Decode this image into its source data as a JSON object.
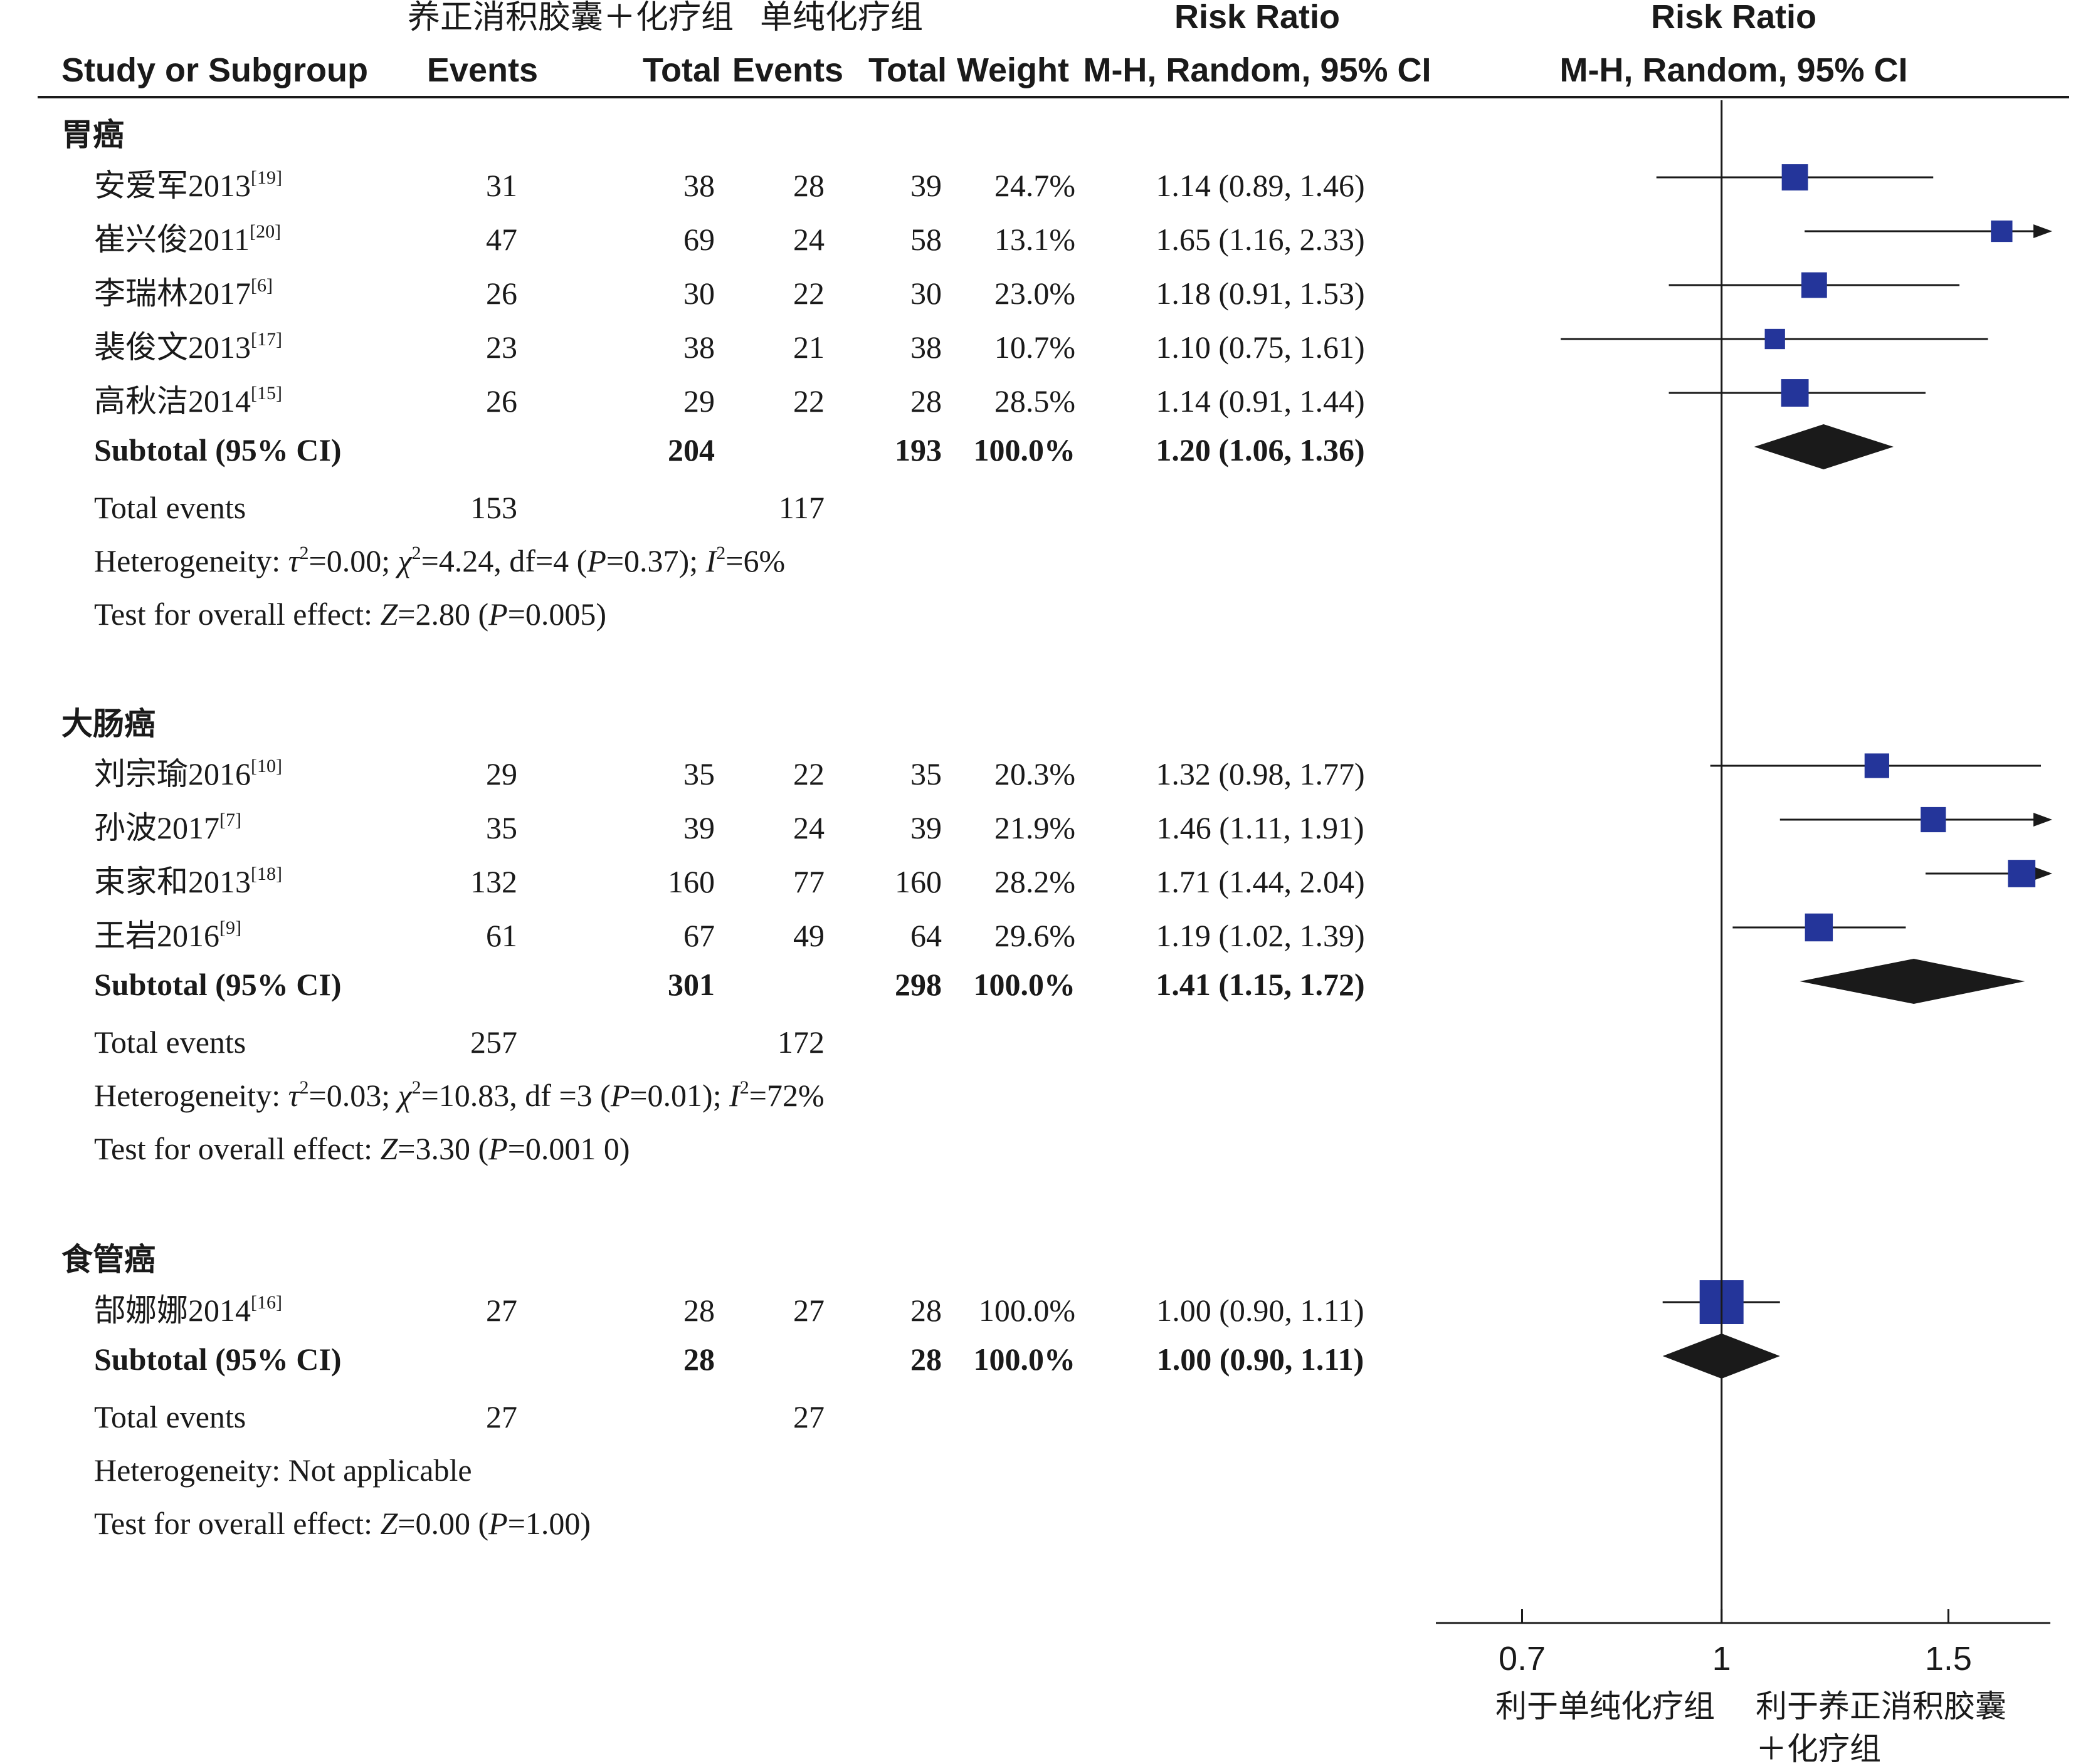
{
  "headers": {
    "group1_name": "养正消积胶囊＋化疗组",
    "group2_name": "单纯化疗组",
    "study_col": "Study or Subgroup",
    "events": "Events",
    "total": "Total",
    "weight": "Weight",
    "rr_title": "Risk Ratio",
    "rr_method": "M-H, Random, 95% CI"
  },
  "chart_data": {
    "type": "forest",
    "axis": {
      "scale": "log",
      "xlim": [
        0.6,
        1.8
      ],
      "ticks": [
        0.7,
        1,
        1.5
      ],
      "tick_labels": [
        "0.7",
        "1",
        "1.5"
      ],
      "left_label": "利于单纯化疗组",
      "right_label_line1": "利于养正消积胶囊",
      "right_label_line2": "＋化疗组"
    },
    "subgroups": [
      {
        "name": "胃癌",
        "studies": [
          {
            "label": "安爱军2013",
            "ref": "[19]",
            "e1": "31",
            "t1": "38",
            "e2": "28",
            "t2": "39",
            "weight": "24.7%",
            "rr_text": "1.14 (0.89, 1.46)",
            "rr": 1.14,
            "lo": 0.89,
            "hi": 1.46
          },
          {
            "label": "崔兴俊2011",
            "ref": "[20]",
            "e1": "47",
            "t1": "69",
            "e2": "24",
            "t2": "58",
            "weight": "13.1%",
            "rr_text": "1.65 (1.16, 2.33)",
            "rr": 1.65,
            "lo": 1.16,
            "hi": 2.33
          },
          {
            "label": "李瑞林2017",
            "ref": "[6]",
            "e1": "26",
            "t1": "30",
            "e2": "22",
            "t2": "30",
            "weight": "23.0%",
            "rr_text": "1.18 (0.91, 1.53)",
            "rr": 1.18,
            "lo": 0.91,
            "hi": 1.53
          },
          {
            "label": "裴俊文2013",
            "ref": "[17]",
            "e1": "23",
            "t1": "38",
            "e2": "21",
            "t2": "38",
            "weight": "10.7%",
            "rr_text": "1.10 (0.75, 1.61)",
            "rr": 1.1,
            "lo": 0.75,
            "hi": 1.61
          },
          {
            "label": "高秋洁2014",
            "ref": "[15]",
            "e1": "26",
            "t1": "29",
            "e2": "22",
            "t2": "28",
            "weight": "28.5%",
            "rr_text": "1.14 (0.91, 1.44)",
            "rr": 1.14,
            "lo": 0.91,
            "hi": 1.44
          }
        ],
        "subtotal": {
          "label": "Subtotal (95% CI)",
          "t1": "204",
          "t2": "193",
          "weight": "100.0%",
          "rr_text": "1.20 (1.06, 1.36)",
          "rr": 1.2,
          "lo": 1.06,
          "hi": 1.36
        },
        "total_events": {
          "label": "Total events",
          "e1": "153",
          "e2": "117"
        },
        "heterogeneity": {
          "prefix": "Heterogeneity: ",
          "tau": "τ",
          "tau_val": "=0.00; ",
          "chi": "χ",
          "chi_val": "=4.24, df=4 (",
          "p": "P",
          "p_val": "=0.37); ",
          "i": "I",
          "i_val": "=6%"
        },
        "overall": {
          "prefix": "Test for overall effect: ",
          "z": "Z",
          "z_val": "=2.80 (",
          "p": "P",
          "p_val": "=0.005)"
        }
      },
      {
        "name": "大肠癌",
        "studies": [
          {
            "label": "刘宗瑜2016",
            "ref": "[10]",
            "e1": "29",
            "t1": "35",
            "e2": "22",
            "t2": "35",
            "weight": "20.3%",
            "rr_text": "1.32 (0.98, 1.77)",
            "rr": 1.32,
            "lo": 0.98,
            "hi": 1.77
          },
          {
            "label": "孙波2017",
            "ref": "[7]",
            "e1": "35",
            "t1": "39",
            "e2": "24",
            "t2": "39",
            "weight": "21.9%",
            "rr_text": "1.46 (1.11, 1.91)",
            "rr": 1.46,
            "lo": 1.11,
            "hi": 1.91
          },
          {
            "label": "束家和2013",
            "ref": "[18]",
            "e1": "132",
            "t1": "160",
            "e2": "77",
            "t2": "160",
            "weight": "28.2%",
            "rr_text": "1.71 (1.44, 2.04)",
            "rr": 1.71,
            "lo": 1.44,
            "hi": 2.04
          },
          {
            "label": "王岩2016",
            "ref": "[9]",
            "e1": "61",
            "t1": "67",
            "e2": "49",
            "t2": "64",
            "weight": "29.6%",
            "rr_text": "1.19 (1.02, 1.39)",
            "rr": 1.19,
            "lo": 1.02,
            "hi": 1.39
          }
        ],
        "subtotal": {
          "label": "Subtotal (95% CI)",
          "t1": "301",
          "t2": "298",
          "weight": "100.0%",
          "rr_text": "1.41 (1.15, 1.72)",
          "rr": 1.41,
          "lo": 1.15,
          "hi": 1.72
        },
        "total_events": {
          "label": "Total events",
          "e1": "257",
          "e2": "172"
        },
        "heterogeneity": {
          "prefix": "Heterogeneity: ",
          "tau": "τ",
          "tau_val": "=0.03; ",
          "chi": "χ",
          "chi_val": "=10.83, df =3 (",
          "p": "P",
          "p_val": "=0.01); ",
          "i": "I",
          "i_val": "=72%"
        },
        "overall": {
          "prefix": "Test for overall effect: ",
          "z": "Z",
          "z_val": "=3.30 (",
          "p": "P",
          "p_val": "=0.001 0)"
        }
      },
      {
        "name": "食管癌",
        "studies": [
          {
            "label": "郜娜娜2014",
            "ref": "[16]",
            "e1": "27",
            "t1": "28",
            "e2": "27",
            "t2": "28",
            "weight": "100.0%",
            "rr_text": "1.00 (0.90, 1.11)",
            "rr": 1.0,
            "lo": 0.9,
            "hi": 1.11
          }
        ],
        "subtotal": {
          "label": "Subtotal (95% CI)",
          "t1": "28",
          "t2": "28",
          "weight": "100.0%",
          "rr_text": "1.00 (0.90, 1.11)",
          "rr": 1.0,
          "lo": 0.9,
          "hi": 1.11
        },
        "total_events": {
          "label": "Total events",
          "e1": "27",
          "e2": "27"
        },
        "heterogeneity": {
          "prefix": "Heterogeneity: Not applicable"
        },
        "overall": {
          "prefix": "Test for overall effect: ",
          "z": "Z",
          "z_val": "=0.00 (",
          "p": "P",
          "p_val": "=1.00)"
        }
      }
    ]
  },
  "colors": {
    "square": "#24359a",
    "diamond": "#1a1a1a",
    "line": "#1a1a1a",
    "text": "#1a1a1a"
  }
}
